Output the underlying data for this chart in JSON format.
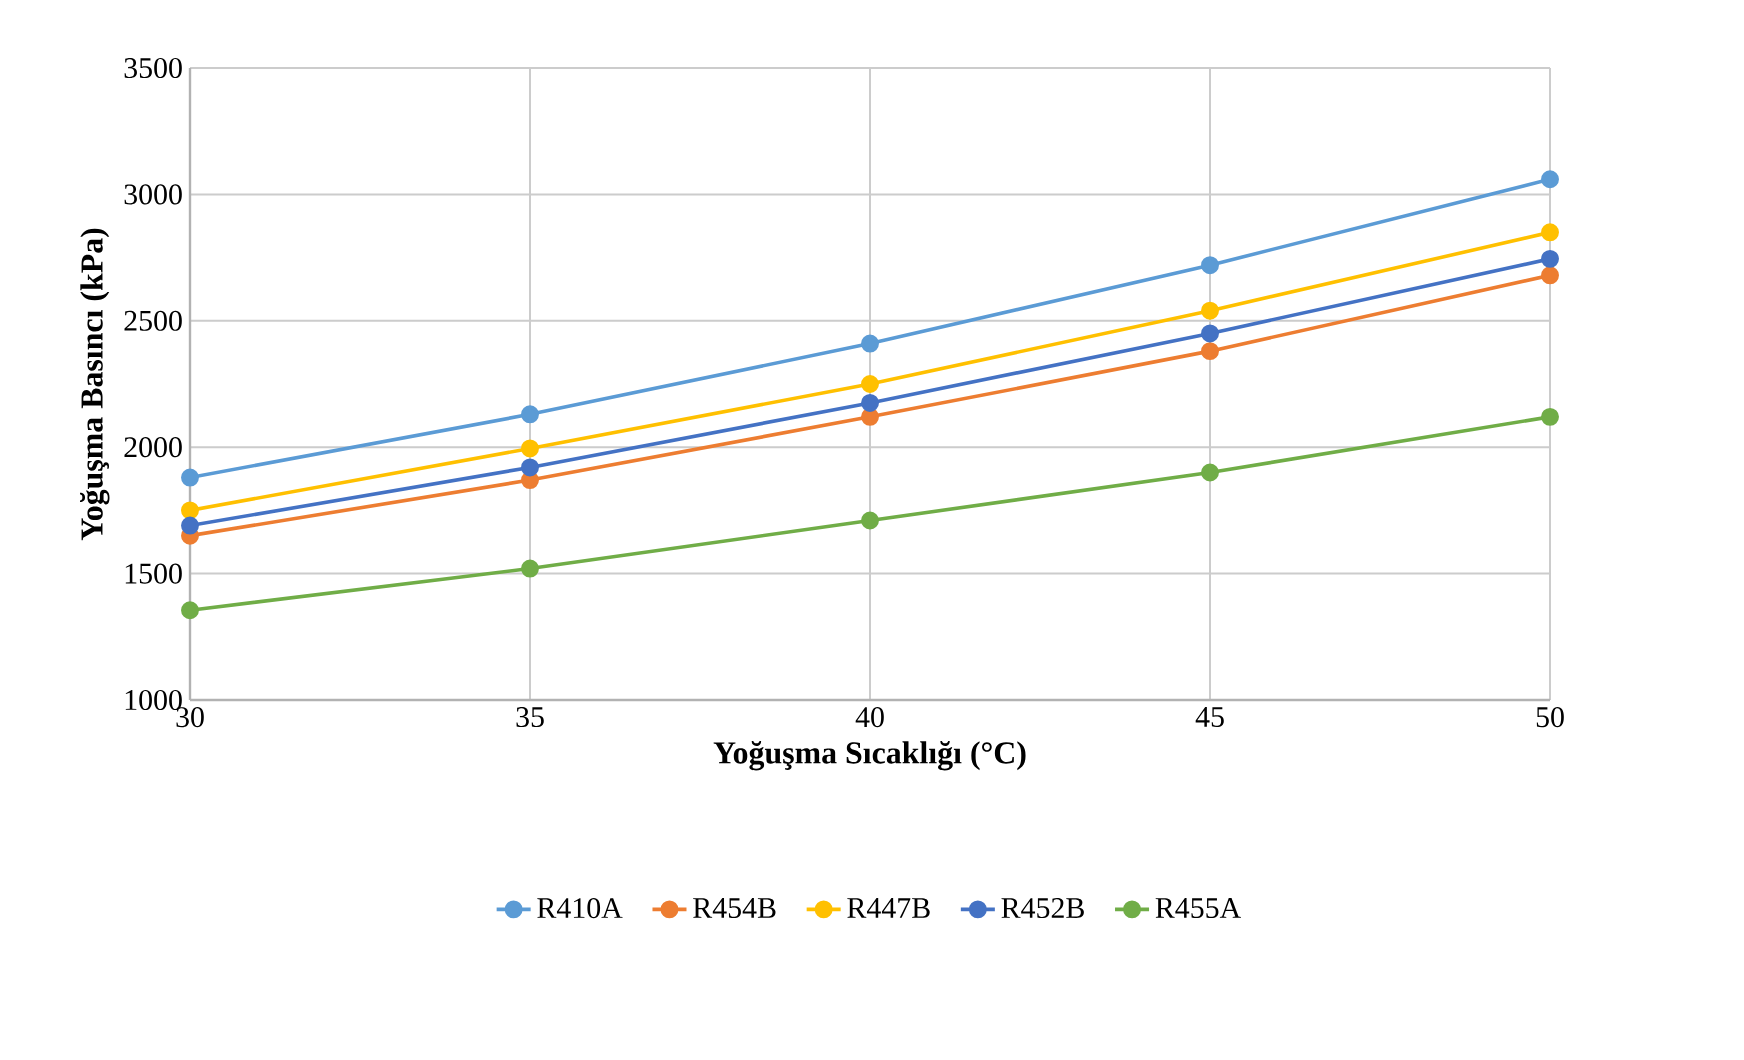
{
  "chart_data": {
    "type": "line",
    "xlabel": "Yoğuşma Sıcaklığı (°C)",
    "ylabel": "Yoğuşma Basıncı (kPa)",
    "x": [
      30,
      35,
      40,
      45,
      50
    ],
    "xlim": [
      30,
      50
    ],
    "xticks": [
      30,
      35,
      40,
      45,
      50
    ],
    "ylim": [
      1000,
      3500
    ],
    "yticks": [
      1000,
      1500,
      2000,
      2500,
      3000,
      3500
    ],
    "grid": true,
    "legend": "bottom",
    "marker": "circle",
    "line_style": "solid",
    "series": [
      {
        "name": "R410A",
        "color": "#5b9bd5",
        "values": [
          1880,
          2130,
          2410,
          2720,
          3060
        ]
      },
      {
        "name": "R454B",
        "color": "#ed7d31",
        "values": [
          1650,
          1870,
          2120,
          2380,
          2680
        ]
      },
      {
        "name": "R447B",
        "color": "#ffc000",
        "values": [
          1750,
          1995,
          2250,
          2540,
          2850
        ]
      },
      {
        "name": "R452B",
        "color": "#4472c4",
        "values": [
          1690,
          1920,
          2175,
          2450,
          2745
        ]
      },
      {
        "name": "R455A",
        "color": "#70ad47",
        "values": [
          1355,
          1520,
          1710,
          1900,
          2120
        ]
      }
    ]
  }
}
